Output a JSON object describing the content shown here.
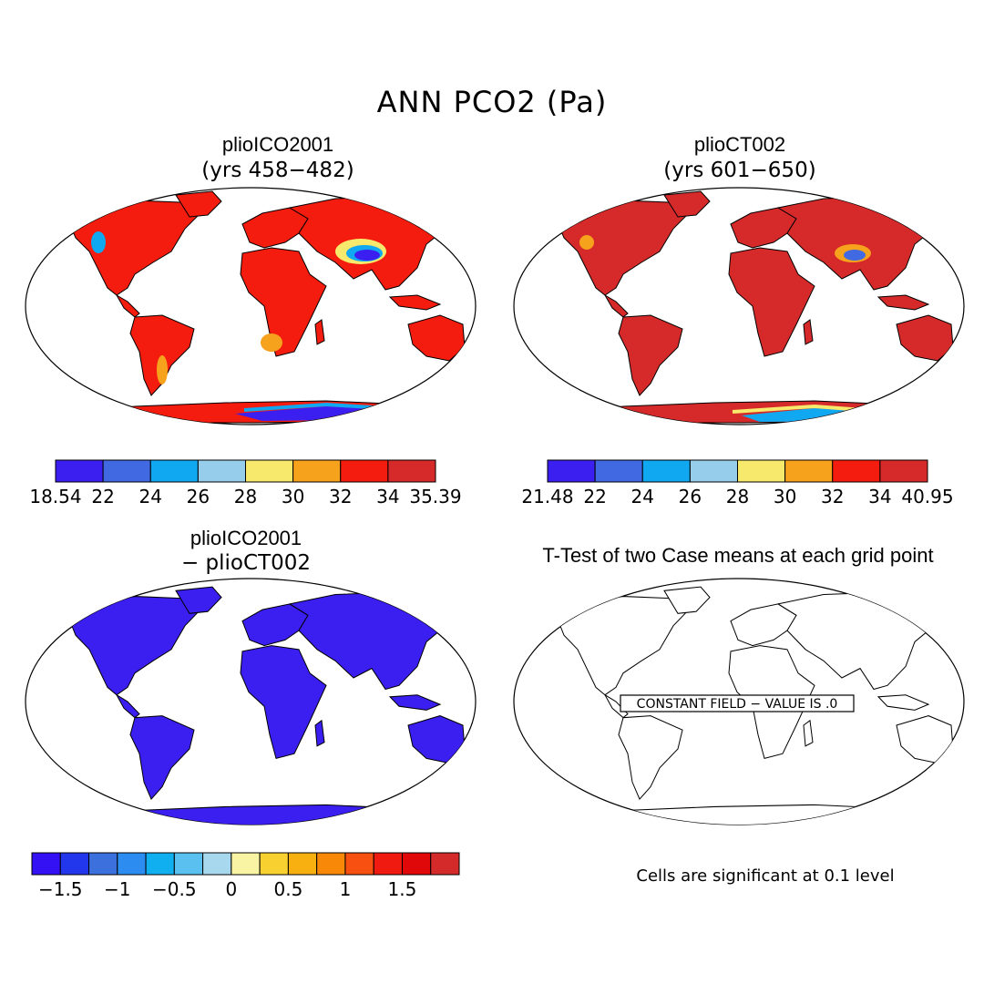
{
  "title": "ANN PCO2 (Pa)",
  "panels": [
    {
      "title": "plioICO2001",
      "subtitle": "(yrs 458−482)"
    },
    {
      "title": "plioCT002",
      "subtitle": "(yrs 601−650)"
    },
    {
      "title": "plioICO2001",
      "subtitle": "− plioCT002"
    },
    {
      "title": "T-Test of two Case means at each grid point",
      "annotation": "CONSTANT FIELD − VALUE IS .0"
    }
  ],
  "colorbars": [
    {
      "colors": [
        "#3b1ff0",
        "#4169e1",
        "#10a8f0",
        "#96cdeb",
        "#f7e96b",
        "#f7a21c",
        "#f41c0e",
        "#d62a2a"
      ],
      "labels": [
        "18.54",
        "22",
        "24",
        "26",
        "28",
        "30",
        "32",
        "34",
        "35.39"
      ]
    },
    {
      "colors": [
        "#3b1ff0",
        "#4169e1",
        "#10a8f0",
        "#96cdeb",
        "#f7e96b",
        "#f7a21c",
        "#f41c0e",
        "#d62a2a"
      ],
      "labels": [
        "21.48",
        "22",
        "24",
        "26",
        "28",
        "30",
        "32",
        "34",
        "40.95"
      ]
    },
    {
      "colors": [
        "#3410f4",
        "#2236ec",
        "#3c70dc",
        "#2c8cef",
        "#10b0f0",
        "#5ac0ef",
        "#a8d8ee",
        "#f8f4a4",
        "#f8d030",
        "#f8b010",
        "#f88808",
        "#f85010",
        "#f01a10",
        "#e00808",
        "#d42a2a"
      ],
      "labels": [
        "−1.5",
        "−1",
        "−0.5",
        "0",
        "0.5",
        "1",
        "1.5"
      ]
    }
  ],
  "note": "Cells are significant at 0.1 level",
  "colors": {
    "land_a": "#f41c0e",
    "land_b": "#d62a2a",
    "land_diff": "#3b1ff0"
  }
}
